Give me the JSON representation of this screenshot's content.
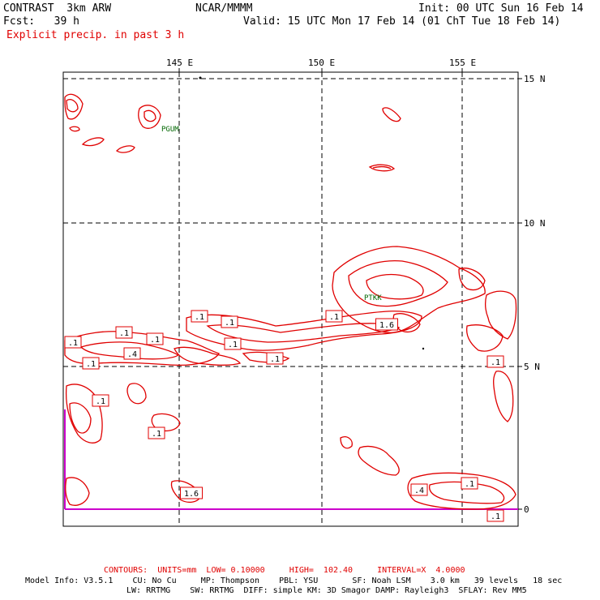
{
  "header": {
    "model_name": "CONTRAST  3km ARW",
    "forecast": "Fcst:   39 h",
    "org": "NCAR/MMMM",
    "init": "Init: 00 UTC Sun 16 Feb 14",
    "valid": "Valid: 15 UTC Mon 17 Feb 14 (01 ChT Tue 18 Feb 14)",
    "field": "Explicit precip. in past 3 h"
  },
  "map": {
    "lon_labels": [
      "145 E",
      "150 E",
      "155 E"
    ],
    "lat_labels": [
      "15 N",
      "10 N",
      "5 N",
      "0"
    ],
    "stations": [
      "PGUM",
      "PTKK"
    ],
    "contour_color": "#e00000",
    "boundary_color": "#cc00cc",
    "station_color": "#006600",
    "contour_labels": [
      ".1",
      ".1",
      ".1",
      ".4",
      ".1",
      ".1",
      ".1",
      ".1",
      ".1",
      ".1",
      "1.6",
      ".1",
      ".1",
      "1.6",
      ".4",
      ".1",
      ".1",
      ".1"
    ]
  },
  "footer": {
    "contours": "CONTOURS:  UNITS=mm  LOW= 0.10000     HIGH=  102.40     INTERVAL=X  4.0000",
    "model_info_1": "Model Info: V3.5.1    CU: No Cu     MP: Thompson    PBL: YSU       SF: Noah LSM    3.0 km   39 levels   18 sec",
    "model_info_2": "LW: RRTMG    SW: RRTMG  DIFF: simple KM: 3D Smagor DAMP: Rayleigh3  SFLAY: Rev MM5"
  }
}
